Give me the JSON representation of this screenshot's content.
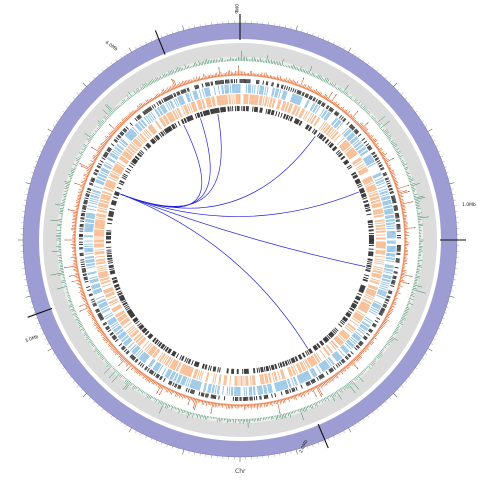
{
  "chromosome_label": "Chr",
  "scale_labels": [
    "0Mb",
    "1.0Mb",
    "2.0Mb",
    "3.0Mb",
    "4.0Mb"
  ],
  "link_count": 7,
  "colors": {
    "ideogram": "#9d9dd3",
    "gray_band": "#dcdcdc",
    "gc_skew": "#2e8b57",
    "gc_content": "#e05a1e",
    "gene_dark": "#2b2b2b",
    "gene_blue": "#8fc1e3",
    "gene_orange": "#f7b98d",
    "links": "#2222dd"
  }
}
